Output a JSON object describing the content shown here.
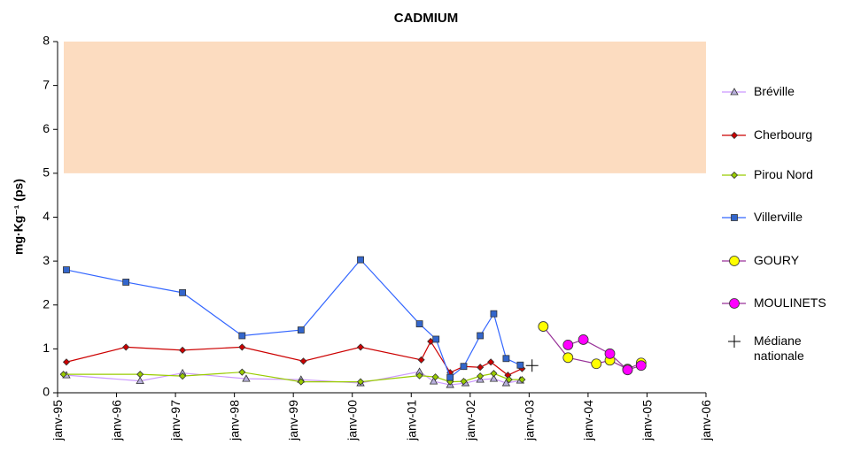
{
  "chart_data": {
    "type": "line",
    "title": "CADMIUM",
    "y_label": "mg·Kg⁻¹ (ps)",
    "xlim": [
      1995,
      2006
    ],
    "ylim": [
      0,
      8
    ],
    "yticks": [
      0,
      1,
      2,
      3,
      4,
      5,
      6,
      7,
      8
    ],
    "xticks": [
      {
        "value": 1995,
        "label": "janv-95"
      },
      {
        "value": 1996,
        "label": "janv-96"
      },
      {
        "value": 1997,
        "label": "janv-97"
      },
      {
        "value": 1998,
        "label": "janv-98"
      },
      {
        "value": 1999,
        "label": "janv-99"
      },
      {
        "value": 2000,
        "label": "janv-00"
      },
      {
        "value": 2001,
        "label": "janv-01"
      },
      {
        "value": 2002,
        "label": "janv-02"
      },
      {
        "value": 2003,
        "label": "janv-03"
      },
      {
        "value": 2004,
        "label": "janv-04"
      },
      {
        "value": 2005,
        "label": "janv-05"
      },
      {
        "value": 2006,
        "label": "janv-06"
      }
    ],
    "shaded_range": [
      5,
      8
    ],
    "shaded_color": "#fcdcc0",
    "legend": "right",
    "series": [
      {
        "name": "Bréville",
        "color": "#cc99ff",
        "marker": "triangle",
        "marker_color": "#b8b0dc",
        "x": [
          1995.15,
          1996.4,
          1997.12,
          1998.2,
          1999.13,
          2000.14,
          2001.14,
          2001.38,
          2001.66,
          2001.92,
          2002.17,
          2002.4,
          2002.61,
          2002.85
        ],
        "values": [
          0.4,
          0.27,
          0.45,
          0.32,
          0.3,
          0.22,
          0.48,
          0.26,
          0.18,
          0.22,
          0.3,
          0.32,
          0.22,
          0.28
        ]
      },
      {
        "name": "Cherbourg",
        "color": "#cc0000",
        "marker": "diamond",
        "marker_color": "#cc0000",
        "x": [
          1995.15,
          1996.16,
          1997.12,
          1998.13,
          1999.17,
          2000.14,
          2001.17,
          2001.33,
          2001.66,
          2001.89,
          2002.17,
          2002.35,
          2002.64,
          2002.88
        ],
        "values": [
          0.7,
          1.04,
          0.97,
          1.04,
          0.72,
          1.04,
          0.75,
          1.17,
          0.46,
          0.6,
          0.58,
          0.7,
          0.4,
          0.55
        ]
      },
      {
        "name": "Pirou Nord",
        "color": "#99cc00",
        "marker": "diamond",
        "marker_color": "#99cc00",
        "x": [
          1995.1,
          1996.4,
          1997.12,
          1998.13,
          1999.13,
          2000.14,
          2001.14,
          2001.41,
          2001.66,
          2001.89,
          2002.17,
          2002.4,
          2002.66,
          2002.88
        ],
        "values": [
          0.42,
          0.42,
          0.38,
          0.47,
          0.25,
          0.25,
          0.39,
          0.36,
          0.25,
          0.26,
          0.38,
          0.44,
          0.3,
          0.3
        ]
      },
      {
        "name": "Villerville",
        "color": "#3366ff",
        "marker": "square",
        "marker_color": "#3366cc",
        "x": [
          1995.15,
          1996.16,
          1997.12,
          1998.13,
          1999.13,
          2000.14,
          2001.14,
          2001.42,
          2001.66,
          2001.89,
          2002.17,
          2002.4,
          2002.61,
          2002.85
        ],
        "values": [
          2.8,
          2.52,
          2.28,
          1.3,
          1.43,
          3.03,
          1.57,
          1.22,
          0.35,
          0.6,
          1.3,
          1.8,
          0.78,
          0.63
        ]
      },
      {
        "name": "GOURY",
        "color": "#993399",
        "marker": "circle",
        "marker_color": "#ffff00",
        "x": [
          2003.24,
          2003.66,
          2004.14,
          2004.37,
          2004.67,
          2004.9
        ],
        "values": [
          1.51,
          0.8,
          0.66,
          0.74,
          0.54,
          0.68
        ]
      },
      {
        "name": "MOULINETS",
        "color": "#993399",
        "marker": "circle",
        "marker_color": "#ff00ff",
        "x": [
          2003.66,
          2003.92,
          2004.37,
          2004.67,
          2004.9
        ],
        "values": [
          1.09,
          1.21,
          0.89,
          0.52,
          0.62
        ]
      },
      {
        "name": "Médiane nationale",
        "color": "#000000",
        "marker": "plus",
        "line": false,
        "x": [
          2003.05
        ],
        "values": [
          0.62
        ]
      }
    ]
  }
}
